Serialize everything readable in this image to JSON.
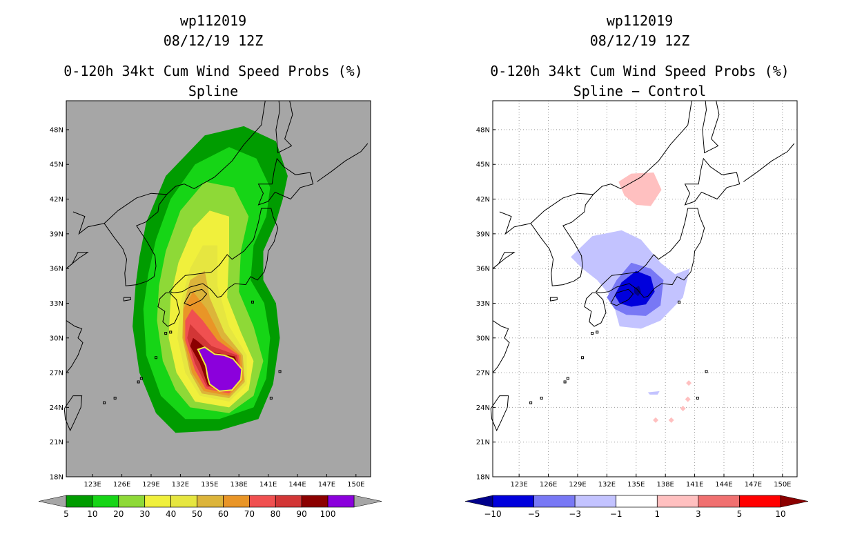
{
  "panels": [
    {
      "storm_id": "wp112019",
      "datetime": "08/12/19 12Z",
      "title": "0-120h 34kt Cum Wind Speed Probs (%)",
      "subtitle": "Spline"
    },
    {
      "storm_id": "wp112019",
      "datetime": "08/12/19 12Z",
      "title": "0-120h 34kt Cum Wind Speed Probs (%)",
      "subtitle": "Spline − Control"
    }
  ],
  "chart_data": [
    {
      "type": "heatmap",
      "title": "0-120h 34kt Cum Wind Speed Probs (%)",
      "subtitle": "Spline",
      "x_ticks": [
        "123E",
        "126E",
        "129E",
        "132E",
        "135E",
        "138E",
        "141E",
        "144E",
        "147E",
        "150E"
      ],
      "y_ticks": [
        "48N",
        "45N",
        "42N",
        "39N",
        "36N",
        "33N",
        "30N",
        "27N",
        "24N",
        "21N",
        "18N"
      ],
      "xlim": [
        120.3,
        151.5
      ],
      "ylim": [
        18,
        50.5
      ],
      "grid": false,
      "colorbar": {
        "labels": [
          "5",
          "10",
          "20",
          "30",
          "40",
          "50",
          "60",
          "70",
          "80",
          "90",
          "100"
        ],
        "colors": [
          "#009c00",
          "#16d516",
          "#8ed937",
          "#f0f03c",
          "#e6e640",
          "#dcb43a",
          "#e99527",
          "#f05050",
          "#d23636",
          "#8b0000",
          "#8b00dc"
        ],
        "below_color": "#a6a6a6",
        "above_color": "#a6a6a6"
      }
    },
    {
      "type": "heatmap",
      "title": "0-120h 34kt Cum Wind Speed Probs (%)",
      "subtitle": "Spline − Control",
      "x_ticks": [
        "123E",
        "126E",
        "129E",
        "132E",
        "135E",
        "138E",
        "141E",
        "144E",
        "147E",
        "150E"
      ],
      "y_ticks": [
        "48N",
        "45N",
        "42N",
        "39N",
        "36N",
        "33N",
        "30N",
        "27N",
        "24N",
        "21N",
        "18N"
      ],
      "xlim": [
        120.3,
        151.5
      ],
      "ylim": [
        18,
        50.5
      ],
      "grid": true,
      "colorbar": {
        "labels": [
          "−10",
          "−5",
          "−3",
          "−1",
          "1",
          "3",
          "5",
          "10"
        ],
        "colors": [
          "#0000dc",
          "#7878f5",
          "#c3c3ff",
          "#ffffff",
          "#ffc0c0",
          "#f07070",
          "#ff0000"
        ],
        "below_color": "#00008b",
        "above_color": "#8b0000"
      }
    }
  ]
}
